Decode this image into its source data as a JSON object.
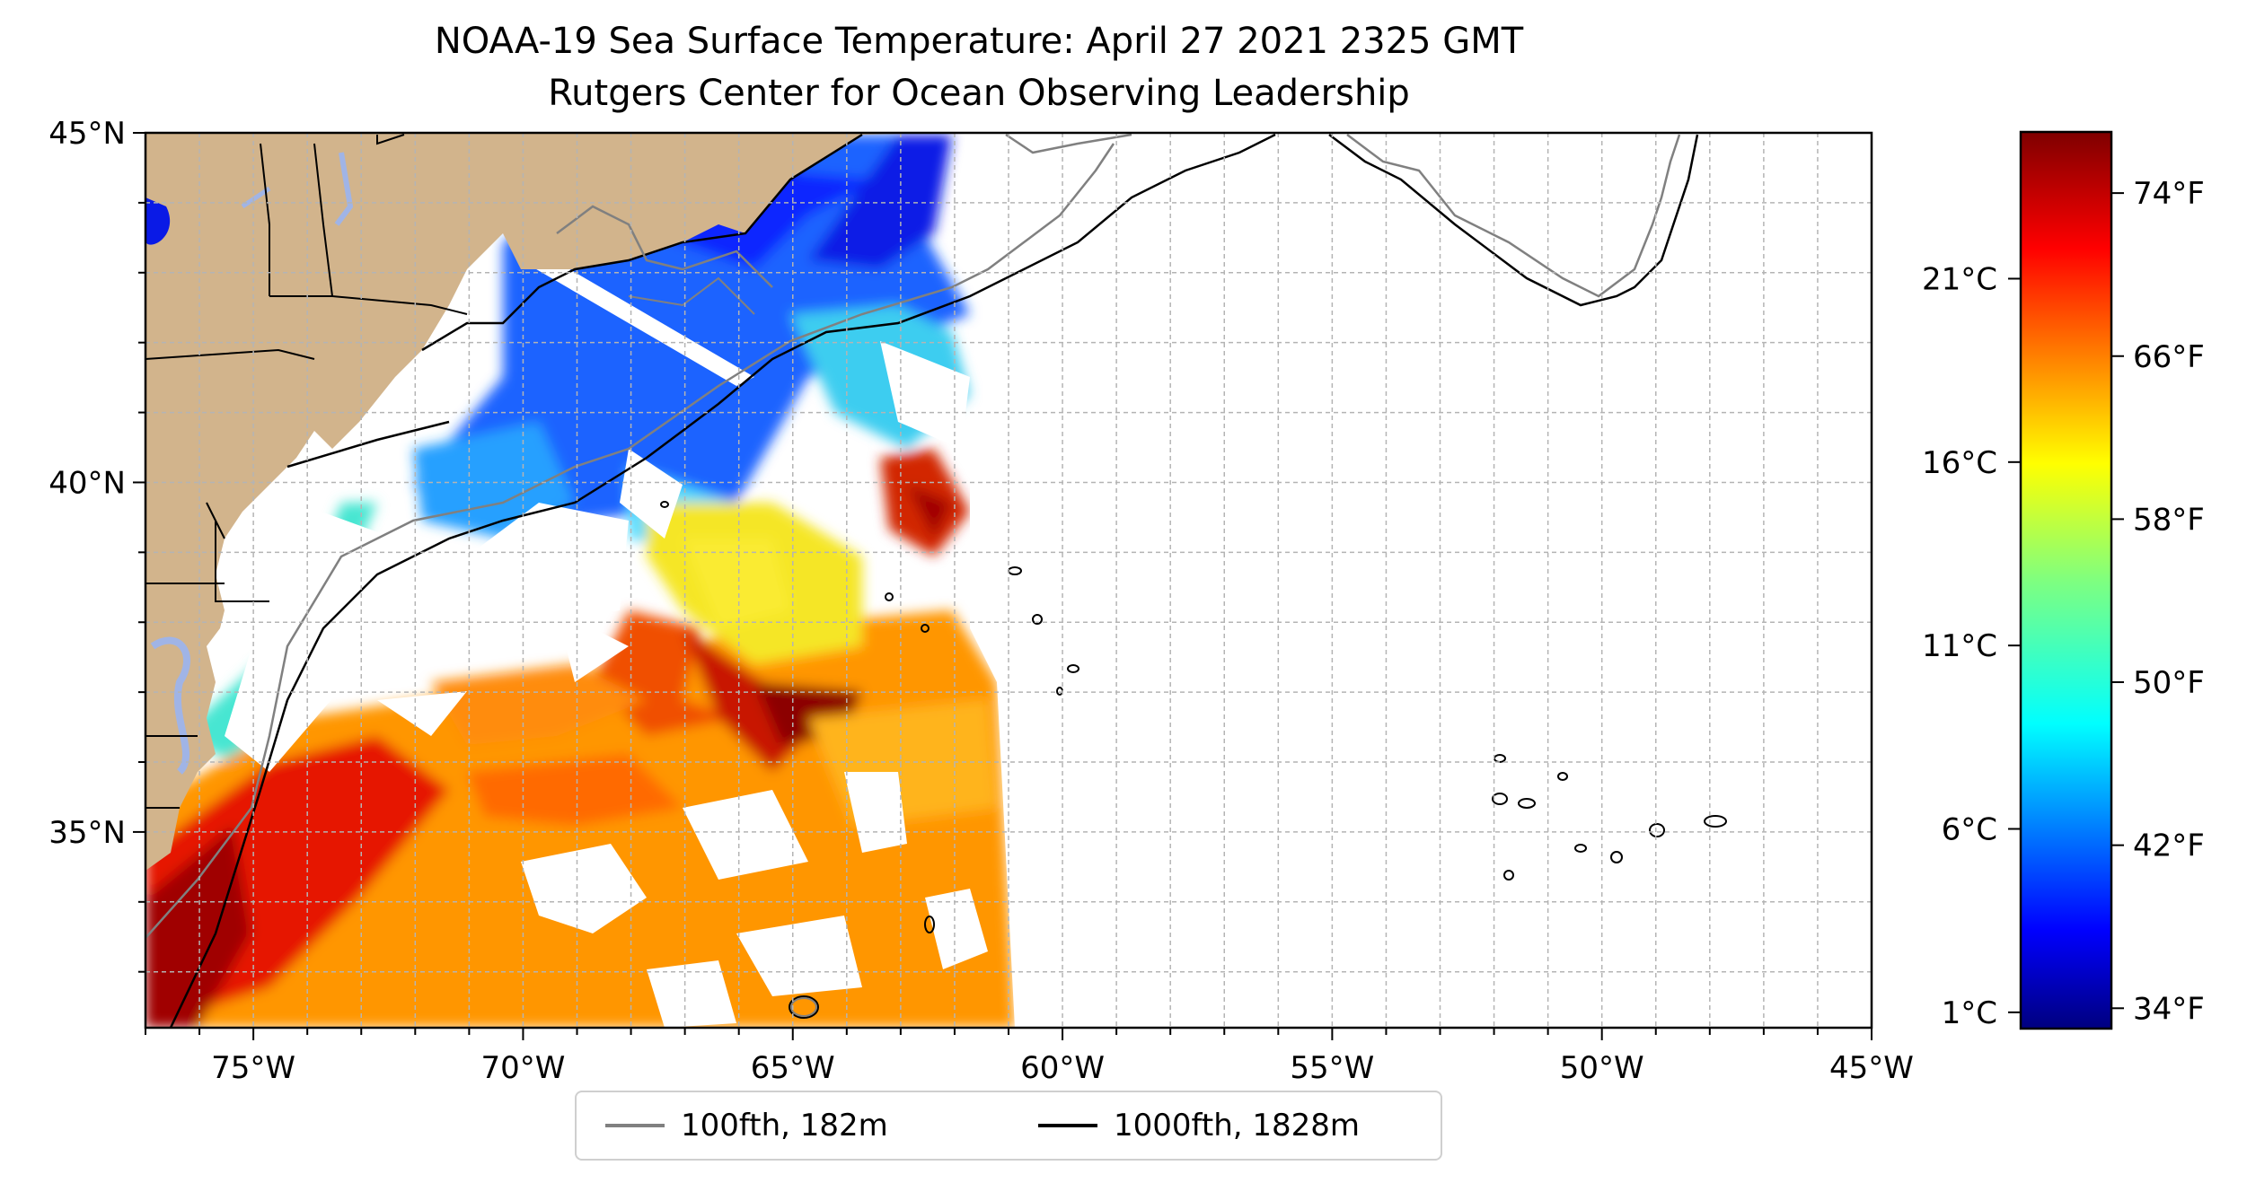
{
  "title": {
    "line1": "NOAA-19 Sea Surface Temperature: April 27 2021 2325 GMT",
    "line2": "Rutgers Center for Ocean Observing Leadership"
  },
  "map": {
    "extent_lon": [
      -77,
      -45
    ],
    "extent_lat": [
      32.2,
      45
    ],
    "lon_ticks": [
      {
        "value": -75,
        "label": "75°W"
      },
      {
        "value": -70,
        "label": "70°W"
      },
      {
        "value": -65,
        "label": "65°W"
      },
      {
        "value": -60,
        "label": "60°W"
      },
      {
        "value": -55,
        "label": "55°W"
      },
      {
        "value": -50,
        "label": "50°W"
      },
      {
        "value": -45,
        "label": "45°W"
      }
    ],
    "lat_ticks": [
      {
        "value": 45,
        "label": "45°N"
      },
      {
        "value": 40,
        "label": "40°N"
      },
      {
        "value": 35,
        "label": "35°N"
      }
    ],
    "gridlines": true,
    "land_color": "#d2b48c",
    "ocean_color": "#ffffff",
    "colormap": "jet"
  },
  "legend": {
    "items": [
      {
        "label": "100fth, 182m",
        "color": "#808080"
      },
      {
        "label": "1000fth, 1828m",
        "color": "#000000"
      }
    ],
    "placement": "bottom-center"
  },
  "colorbar": {
    "min_f": 33,
    "max_f": 77,
    "celsius_ticks": [
      "21°C",
      "16°C",
      "11°C",
      "6°C",
      "1°C"
    ],
    "celsius_values": [
      21,
      16,
      11,
      6,
      1
    ],
    "fahrenheit_ticks": [
      "74°F",
      "66°F",
      "58°F",
      "50°F",
      "42°F",
      "34°F"
    ],
    "fahrenheit_values": [
      74,
      66,
      58,
      50,
      42,
      34
    ]
  }
}
